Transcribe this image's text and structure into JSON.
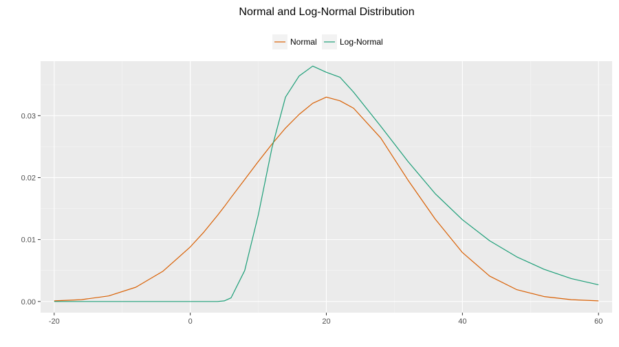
{
  "chart_data": {
    "type": "line",
    "title": "Normal and Log-Normal Distribution",
    "xlabel": "",
    "ylabel": "",
    "xlim": [
      -22,
      62
    ],
    "ylim": [
      -0.0018,
      0.0388
    ],
    "x_ticks": [
      -20,
      0,
      20,
      40,
      60
    ],
    "x_tick_labels": [
      "-20",
      "0",
      "20",
      "40",
      "60"
    ],
    "y_ticks": [
      0.0,
      0.01,
      0.02,
      0.03
    ],
    "y_tick_labels": [
      "0.00",
      "0.01",
      "0.02",
      "0.03"
    ],
    "grid": true,
    "legend_position": "top",
    "x": [
      -20,
      -16,
      -12,
      -8,
      -4,
      0,
      2,
      4,
      5,
      6,
      8,
      10,
      12,
      14,
      16,
      18,
      20,
      22,
      24,
      28,
      32,
      36,
      40,
      44,
      48,
      52,
      56,
      60
    ],
    "series": [
      {
        "name": "Normal",
        "color": "#d95f02",
        "values": [
          0.0001,
          0.0003,
          0.0009,
          0.0023,
          0.0049,
          0.0088,
          0.0112,
          0.0139,
          0.0153,
          0.0168,
          0.0197,
          0.0226,
          0.0254,
          0.028,
          0.0302,
          0.032,
          0.033,
          0.0324,
          0.0312,
          0.0264,
          0.0196,
          0.0133,
          0.0079,
          0.0041,
          0.0019,
          0.0008,
          0.0003,
          0.0001
        ]
      },
      {
        "name": "Log-Normal",
        "color": "#1b9e77",
        "values": [
          0.0,
          0.0,
          0.0,
          0.0,
          0.0,
          0.0,
          0.0,
          0.0,
          0.0001,
          0.0006,
          0.005,
          0.014,
          0.0248,
          0.033,
          0.0364,
          0.038,
          0.037,
          0.0362,
          0.0338,
          0.0283,
          0.0226,
          0.0174,
          0.0132,
          0.0098,
          0.0072,
          0.0052,
          0.0037,
          0.0027
        ]
      }
    ]
  }
}
